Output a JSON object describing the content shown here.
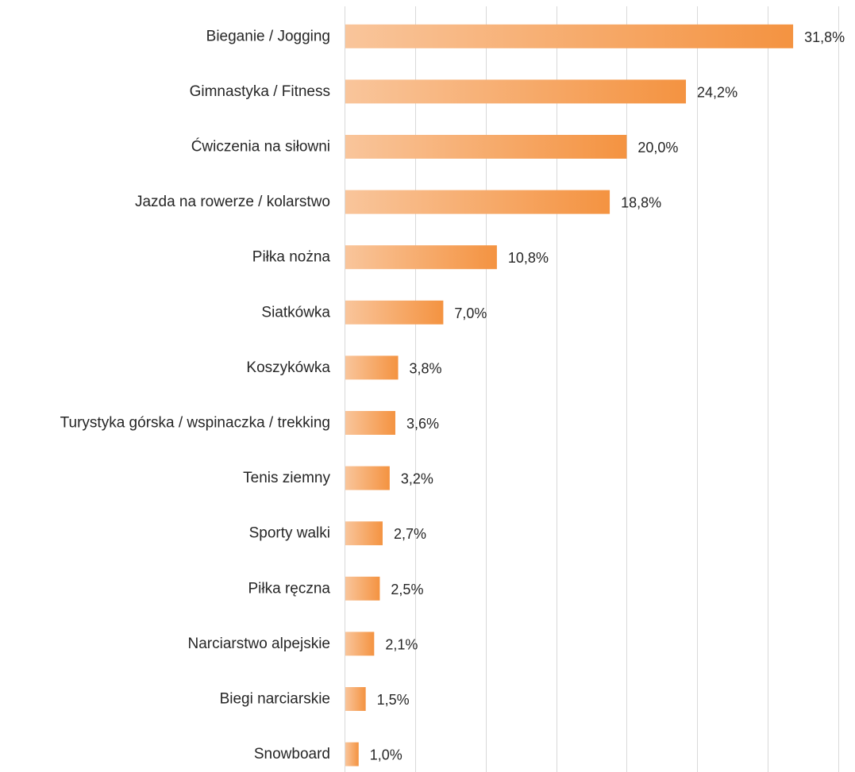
{
  "colors": {
    "bar_start": "#f9c59b",
    "bar_end": "#f49341",
    "gridline": "#d9d9d9",
    "text": "#262626"
  },
  "chart_data": {
    "type": "bar",
    "orientation": "horizontal",
    "title": "",
    "xlabel": "",
    "ylabel": "",
    "xlim": [
      0,
      35
    ],
    "grid": true,
    "gridline_step": 5,
    "categories": [
      "Bieganie / Jogging",
      "Gimnastyka / Fitness",
      "Ćwiczenia na siłowni",
      "Jazda na rowerze / kolarstwo",
      "Piłka nożna",
      "Siatkówka",
      "Koszykówka",
      "Turystyka górska / wspinaczka / trekking",
      "Tenis ziemny",
      "Sporty walki",
      "Piłka ręczna",
      "Narciarstwo alpejskie",
      "Biegi narciarskie",
      "Snowboard"
    ],
    "values": [
      31.8,
      24.2,
      20.0,
      18.8,
      10.8,
      7.0,
      3.8,
      3.6,
      3.2,
      2.7,
      2.5,
      2.1,
      1.5,
      1.0
    ],
    "data_labels": [
      "31,8%",
      "24,2%",
      "20,0%",
      "18,8%",
      "10,8%",
      "7,0%",
      "3,8%",
      "3,6%",
      "3,2%",
      "2,7%",
      "2,5%",
      "2,1%",
      "1,5%",
      "1,0%"
    ]
  }
}
